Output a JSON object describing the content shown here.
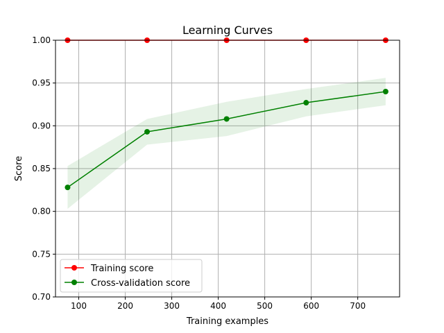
{
  "chart_data": {
    "type": "line",
    "title": "Learning Curves",
    "xlabel": "Training examples",
    "ylabel": "Score",
    "xlim": [
      50,
      790
    ],
    "ylim": [
      0.7,
      1.0
    ],
    "xticks": [
      100,
      200,
      300,
      400,
      500,
      600,
      700
    ],
    "yticks": [
      0.7,
      0.75,
      0.8,
      0.85,
      0.9,
      0.95,
      1.0
    ],
    "grid": true,
    "legend_position": "lower-left",
    "x": [
      76,
      247,
      418,
      589,
      760
    ],
    "series": [
      {
        "name": "Training score",
        "color": "#ff0000",
        "marker": "circle",
        "values": [
          1.0,
          1.0,
          1.0,
          1.0,
          1.0
        ],
        "band": null
      },
      {
        "name": "Cross-validation score",
        "color": "#008000",
        "marker": "circle",
        "values": [
          0.828,
          0.893,
          0.908,
          0.927,
          0.94
        ],
        "band": {
          "lower": [
            0.803,
            0.878,
            0.888,
            0.911,
            0.924
          ],
          "upper": [
            0.853,
            0.908,
            0.928,
            0.943,
            0.956
          ],
          "color": "#008000",
          "opacity": 0.1
        }
      }
    ]
  }
}
